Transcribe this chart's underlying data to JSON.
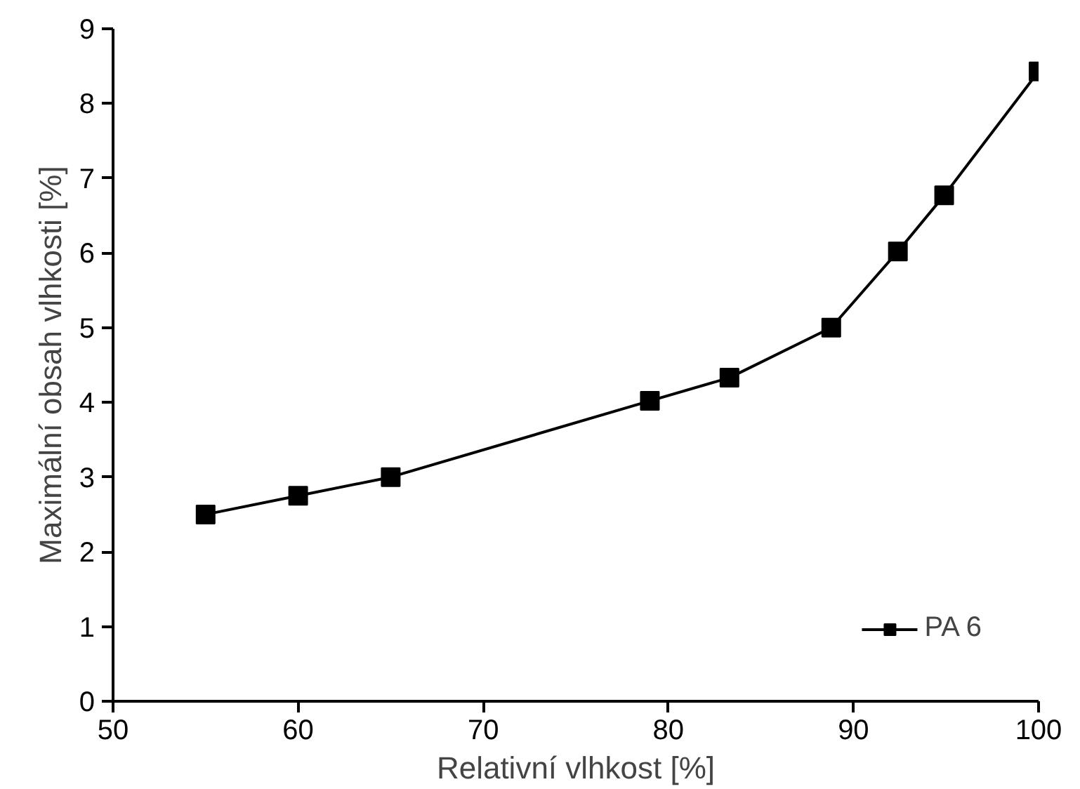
{
  "chart_data": {
    "type": "line",
    "xlabel": "Relativní vlhkost [%]",
    "ylabel": "Maximální obsah vlhkosti [%]",
    "x": [
      55,
      60,
      65,
      79,
      83.3,
      88.8,
      92.4,
      94.9,
      100
    ],
    "series": [
      {
        "name": "PA 6",
        "color": "#000000",
        "values": [
          2.5,
          2.75,
          3.0,
          4.02,
          4.33,
          5.0,
          6.02,
          6.77,
          8.43
        ]
      }
    ],
    "xlim": [
      50,
      100
    ],
    "ylim": [
      0,
      9
    ],
    "xticks": [
      50,
      60,
      70,
      80,
      90,
      100
    ],
    "yticks": [
      0,
      1,
      2,
      3,
      4,
      5,
      6,
      7,
      8,
      9
    ],
    "grid": false,
    "legend": "bottom right",
    "marker": "square",
    "line_style": "solid"
  }
}
